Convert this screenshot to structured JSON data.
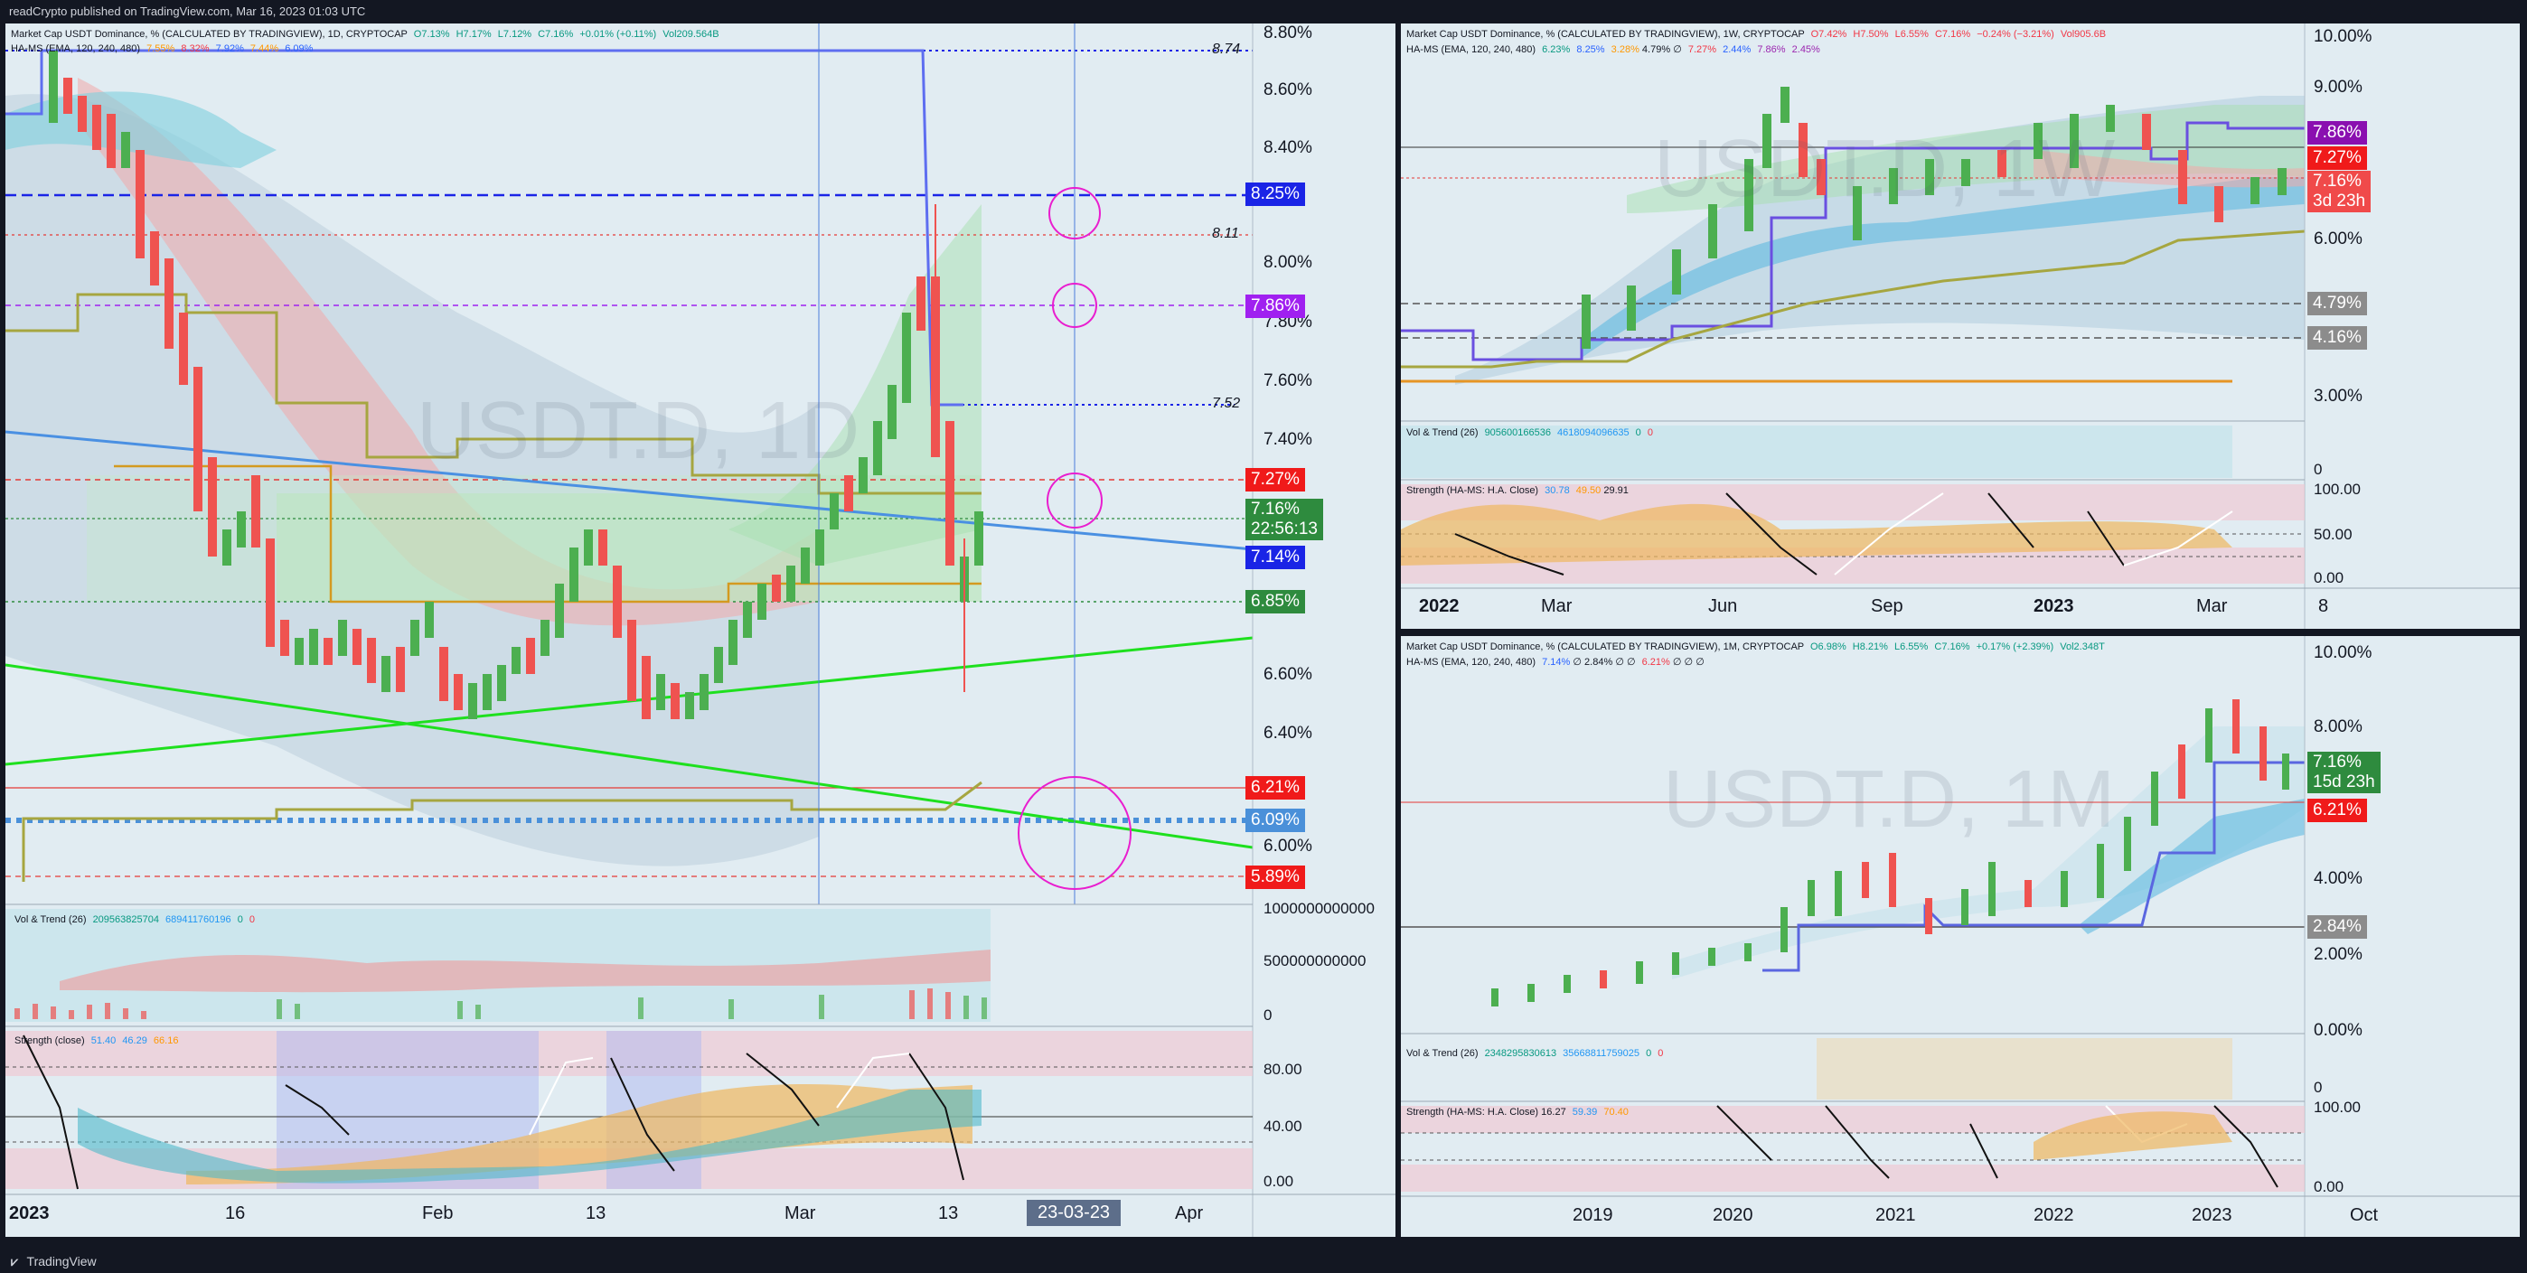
{
  "header": {
    "text": "readCrypto published on TradingView.com, Mar 16, 2023 01:03 UTC"
  },
  "footer": {
    "brand": "TradingView",
    "logo": "tradingview-logo"
  },
  "chart_data": [
    {
      "type": "candlestick",
      "symbol": "USDT.D",
      "interval": "1D",
      "title": "Market Cap USDT Dominance, % (CALCULATED BY TRADINGVIEW), 1D, CRYPTOCAP",
      "ohlc_legend": {
        "o": "O7.13%",
        "h": "H7.17%",
        "l": "L7.12%",
        "c": "C7.16%",
        "chg": "+0.01% (+0.11%)",
        "vol": "Vol209.564B"
      },
      "indicator_legend": {
        "name": "HA-MS (EMA, 120, 240, 480)",
        "v1": "7.55%",
        "v2": "8.32%",
        "v3": "7.92%",
        "v4": "7.44%",
        "v5": "6.09%"
      },
      "y_ticks": [
        "8.80%",
        "8.60%",
        "8.40%",
        "8.20%",
        "8.00%",
        "7.80%",
        "7.60%",
        "7.40%",
        "7.20%",
        "7.00%",
        "6.80%",
        "6.60%",
        "6.40%",
        "6.20%",
        "6.00%"
      ],
      "x_ticks": [
        "2023",
        "16",
        "Feb",
        "13",
        "Mar",
        "13",
        "Apr"
      ],
      "price_tags": [
        {
          "label": "8.25%",
          "color": "#1a24e6"
        },
        {
          "label": "7.86%",
          "color": "#a020f0"
        },
        {
          "label": "7.27%",
          "color": "#f01a1a"
        },
        {
          "label": "7.16%",
          "sub": "22:56:13",
          "color": "#2e8b3e"
        },
        {
          "label": "7.14%",
          "color": "#1a24e6"
        },
        {
          "label": "6.85%",
          "color": "#2e8b3e"
        },
        {
          "label": "6.21%",
          "color": "#f01a1a"
        },
        {
          "label": "6.09%",
          "color": "#4a90d9"
        },
        {
          "label": "5.89%",
          "color": "#f01a1a"
        }
      ],
      "line_labels": [
        "8.74",
        "8.11",
        "7.52"
      ],
      "date_tag": "23-03-23",
      "vol_trend": {
        "label": "Vol & Trend (26)",
        "v1": "209563825704",
        "v2": "689411760196",
        "v3": "0",
        "v4": "0",
        "y_ticks": [
          "1000000000000",
          "500000000000",
          "0"
        ]
      },
      "strength": {
        "label": "Strength (close)",
        "v1": "51.40",
        "v2": "46.29",
        "v3": "66.16",
        "y_ticks": [
          "80.00",
          "40.00",
          "0.00"
        ]
      }
    },
    {
      "type": "candlestick",
      "symbol": "USDT.D",
      "interval": "1W",
      "title": "Market Cap USDT Dominance, % (CALCULATED BY TRADINGVIEW), 1W, CRYPTOCAP",
      "ohlc_legend": {
        "o": "O7.42%",
        "h": "H7.50%",
        "l": "L6.55%",
        "c": "C7.16%",
        "chg": "−0.24% (−3.21%)",
        "vol": "Vol905.6B"
      },
      "indicator_legend": {
        "name": "HA-MS (EMA, 120, 240, 480)",
        "v1": "6.23%",
        "v2": "8.25%",
        "v3": "3.28%",
        "v4": "4.79%",
        "v5": "∅",
        "v6": "7.27%",
        "v7": "2.44%",
        "v8": "7.86%",
        "v9": "2.45%"
      },
      "y_ticks": [
        "10.00%",
        "9.00%",
        "8.00%",
        "7.00%",
        "6.00%",
        "5.00%",
        "4.00%",
        "3.00%"
      ],
      "x_ticks": [
        "2022",
        "Mar",
        "Jun",
        "Sep",
        "2023",
        "Mar",
        "8"
      ],
      "price_tags": [
        {
          "label": "7.86%",
          "color": "#8a0fb0"
        },
        {
          "label": "7.27%",
          "color": "#f01a1a"
        },
        {
          "label": "7.16%",
          "sub": "3d 23h",
          "color": "#f04a4a"
        },
        {
          "label": "4.79%",
          "color": "#8c8c8c"
        },
        {
          "label": "4.16%",
          "color": "#8c8c8c"
        }
      ],
      "vol_trend": {
        "label": "Vol & Trend (26)",
        "v1": "905600166536",
        "v2": "4618094096635",
        "v3": "0",
        "v4": "0",
        "y_ticks": [
          "0"
        ]
      },
      "strength": {
        "label": "Strength (HA-MS: H.A. Close)",
        "v1": "30.78",
        "v2": "49.50",
        "v3": "29.91",
        "y_ticks": [
          "100.00",
          "50.00",
          "0.00"
        ]
      }
    },
    {
      "type": "candlestick",
      "symbol": "USDT.D",
      "interval": "1M",
      "title": "Market Cap USDT Dominance, % (CALCULATED BY TRADINGVIEW), 1M, CRYPTOCAP",
      "ohlc_legend": {
        "o": "O6.98%",
        "h": "H8.21%",
        "l": "L6.55%",
        "c": "C7.16%",
        "chg": "+0.17% (+2.39%)",
        "vol": "Vol2.348T"
      },
      "indicator_legend": {
        "name": "HA-MS (EMA, 120, 240, 480)",
        "v1": "7.14%",
        "v2": "∅",
        "v3": "2.84%",
        "v4": "∅",
        "v5": "∅",
        "v6": "6.21%",
        "v7": "∅",
        "v8": "∅",
        "v9": "∅"
      },
      "y_ticks": [
        "10.00%",
        "8.00%",
        "6.00%",
        "4.00%",
        "2.00%",
        "0.00%"
      ],
      "x_ticks": [
        "2019",
        "2020",
        "2021",
        "2022",
        "2023",
        "Oct"
      ],
      "price_tags": [
        {
          "label": "7.16%",
          "sub": "15d 23h",
          "color": "#2e8b3e"
        },
        {
          "label": "6.21%",
          "color": "#f01a1a"
        },
        {
          "label": "2.84%",
          "color": "#8c8c8c"
        }
      ],
      "vol_trend": {
        "label": "Vol & Trend (26)",
        "v1": "2348295830613",
        "v2": "35668811759025",
        "v3": "0",
        "v4": "0",
        "y_ticks": [
          "0"
        ]
      },
      "strength": {
        "label": "Strength (HA-MS: H.A. Close)",
        "v1": "16.27",
        "v2": "59.39",
        "v3": "70.40",
        "y_ticks": [
          "100.00",
          "0.00"
        ]
      }
    }
  ]
}
